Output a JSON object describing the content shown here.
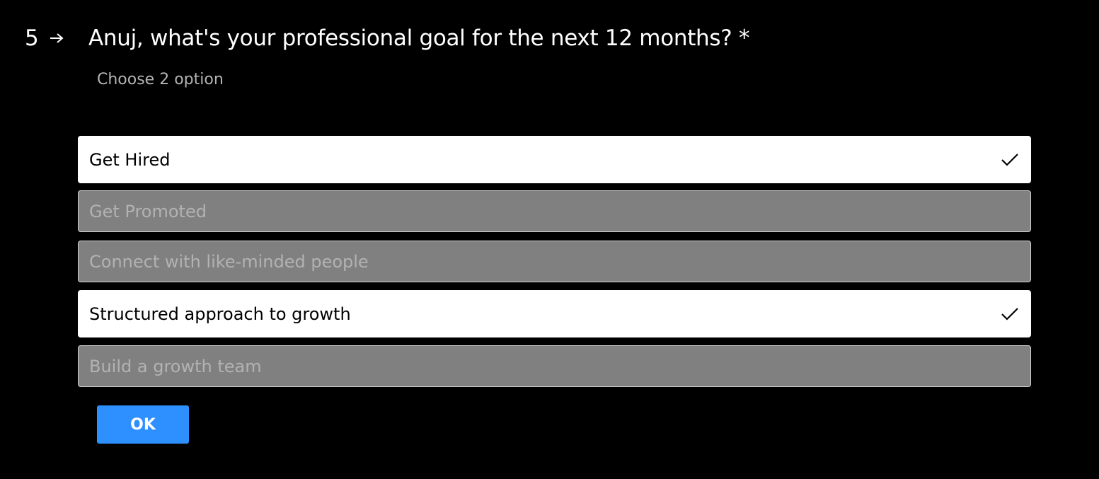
{
  "question": {
    "number": "5",
    "title": "Anuj, what's your professional goal for the next 12 months? *",
    "subtitle": "Choose 2 option",
    "arrow_icon": "arrow-right-icon"
  },
  "options": [
    {
      "label": "Get Hired",
      "selected": true
    },
    {
      "label": "Get Promoted",
      "selected": false
    },
    {
      "label": "Connect with like-minded people",
      "selected": false
    },
    {
      "label": "Structured approach to growth",
      "selected": true
    },
    {
      "label": "Build a growth team",
      "selected": false
    }
  ],
  "ok_button": {
    "label": "OK"
  },
  "colors": {
    "background": "#000000",
    "selected_bg": "#ffffff",
    "unselected_bg": "#808080",
    "accent": "#2e8fff"
  }
}
